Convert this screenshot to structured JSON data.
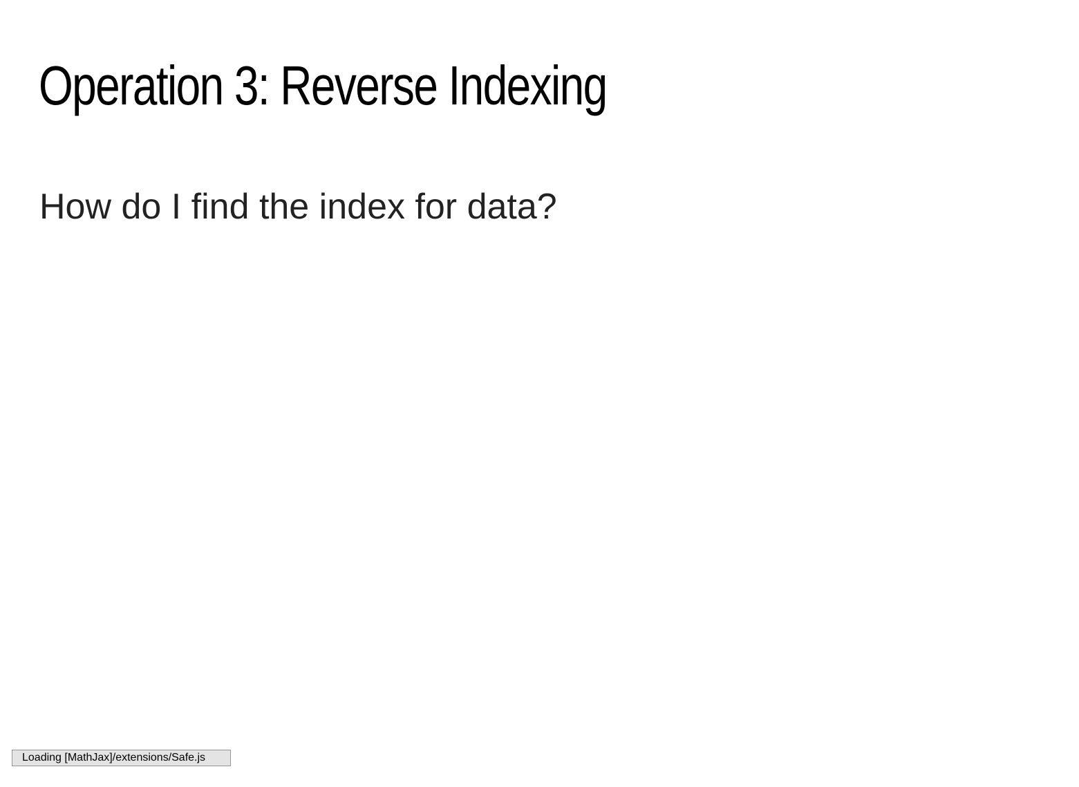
{
  "slide": {
    "title": "Operation 3: Reverse Indexing",
    "body": "How do I find the index for data?"
  },
  "status": {
    "message": "Loading [MathJax]/extensions/Safe.js"
  }
}
